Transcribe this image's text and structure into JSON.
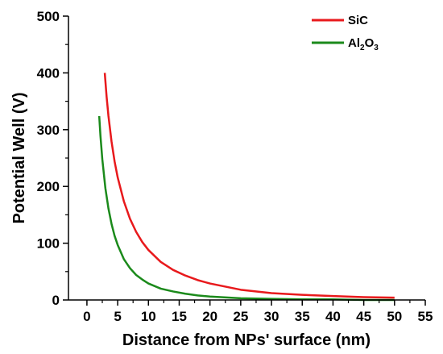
{
  "chart_data": {
    "type": "line",
    "title": "",
    "xlabel": "Distance from NPs' surface (nm)",
    "ylabel": "Potential Well (V)",
    "xlim": [
      -3,
      55
    ],
    "ylim": [
      0,
      500
    ],
    "xticks": [
      "0",
      "5",
      "10",
      "15",
      "20",
      "25",
      "30",
      "35",
      "40",
      "45",
      "50",
      "55"
    ],
    "yticks": [
      "0",
      "100",
      "200",
      "300",
      "400",
      "500"
    ],
    "grid": false,
    "legend_position": "top-right",
    "series": [
      {
        "name": "SiC",
        "color": "#e8191c",
        "x": [
          2.9,
          3.2,
          3.5,
          4,
          4.5,
          5,
          6,
          7,
          8,
          9,
          10,
          12,
          14,
          16,
          18,
          20,
          25,
          30,
          35,
          40,
          45,
          50
        ],
        "y": [
          400,
          358,
          324,
          279,
          244,
          216,
          174,
          143,
          120,
          102,
          88,
          67,
          53,
          43,
          35,
          29,
          18,
          12,
          9,
          7,
          5,
          4
        ]
      },
      {
        "name": "Al2O3",
        "color": "#1b8a1b",
        "x": [
          2.0,
          2.2,
          2.5,
          3,
          3.5,
          4,
          4.5,
          5,
          6,
          7,
          8,
          9,
          10,
          12,
          14,
          16,
          18,
          20,
          25,
          30,
          35,
          40,
          45,
          50
        ],
        "y": [
          324,
          289,
          248,
          197,
          161,
          134,
          113,
          97,
          72,
          56,
          44,
          36,
          29,
          20,
          15,
          11,
          8,
          6,
          3,
          2,
          1,
          1,
          0,
          0
        ]
      }
    ]
  },
  "legend": {
    "sic_label": "SiC",
    "al_label_prefix": "Al",
    "al_label_sub1": "2",
    "al_label_mid": "O",
    "al_label_sub2": "3"
  }
}
